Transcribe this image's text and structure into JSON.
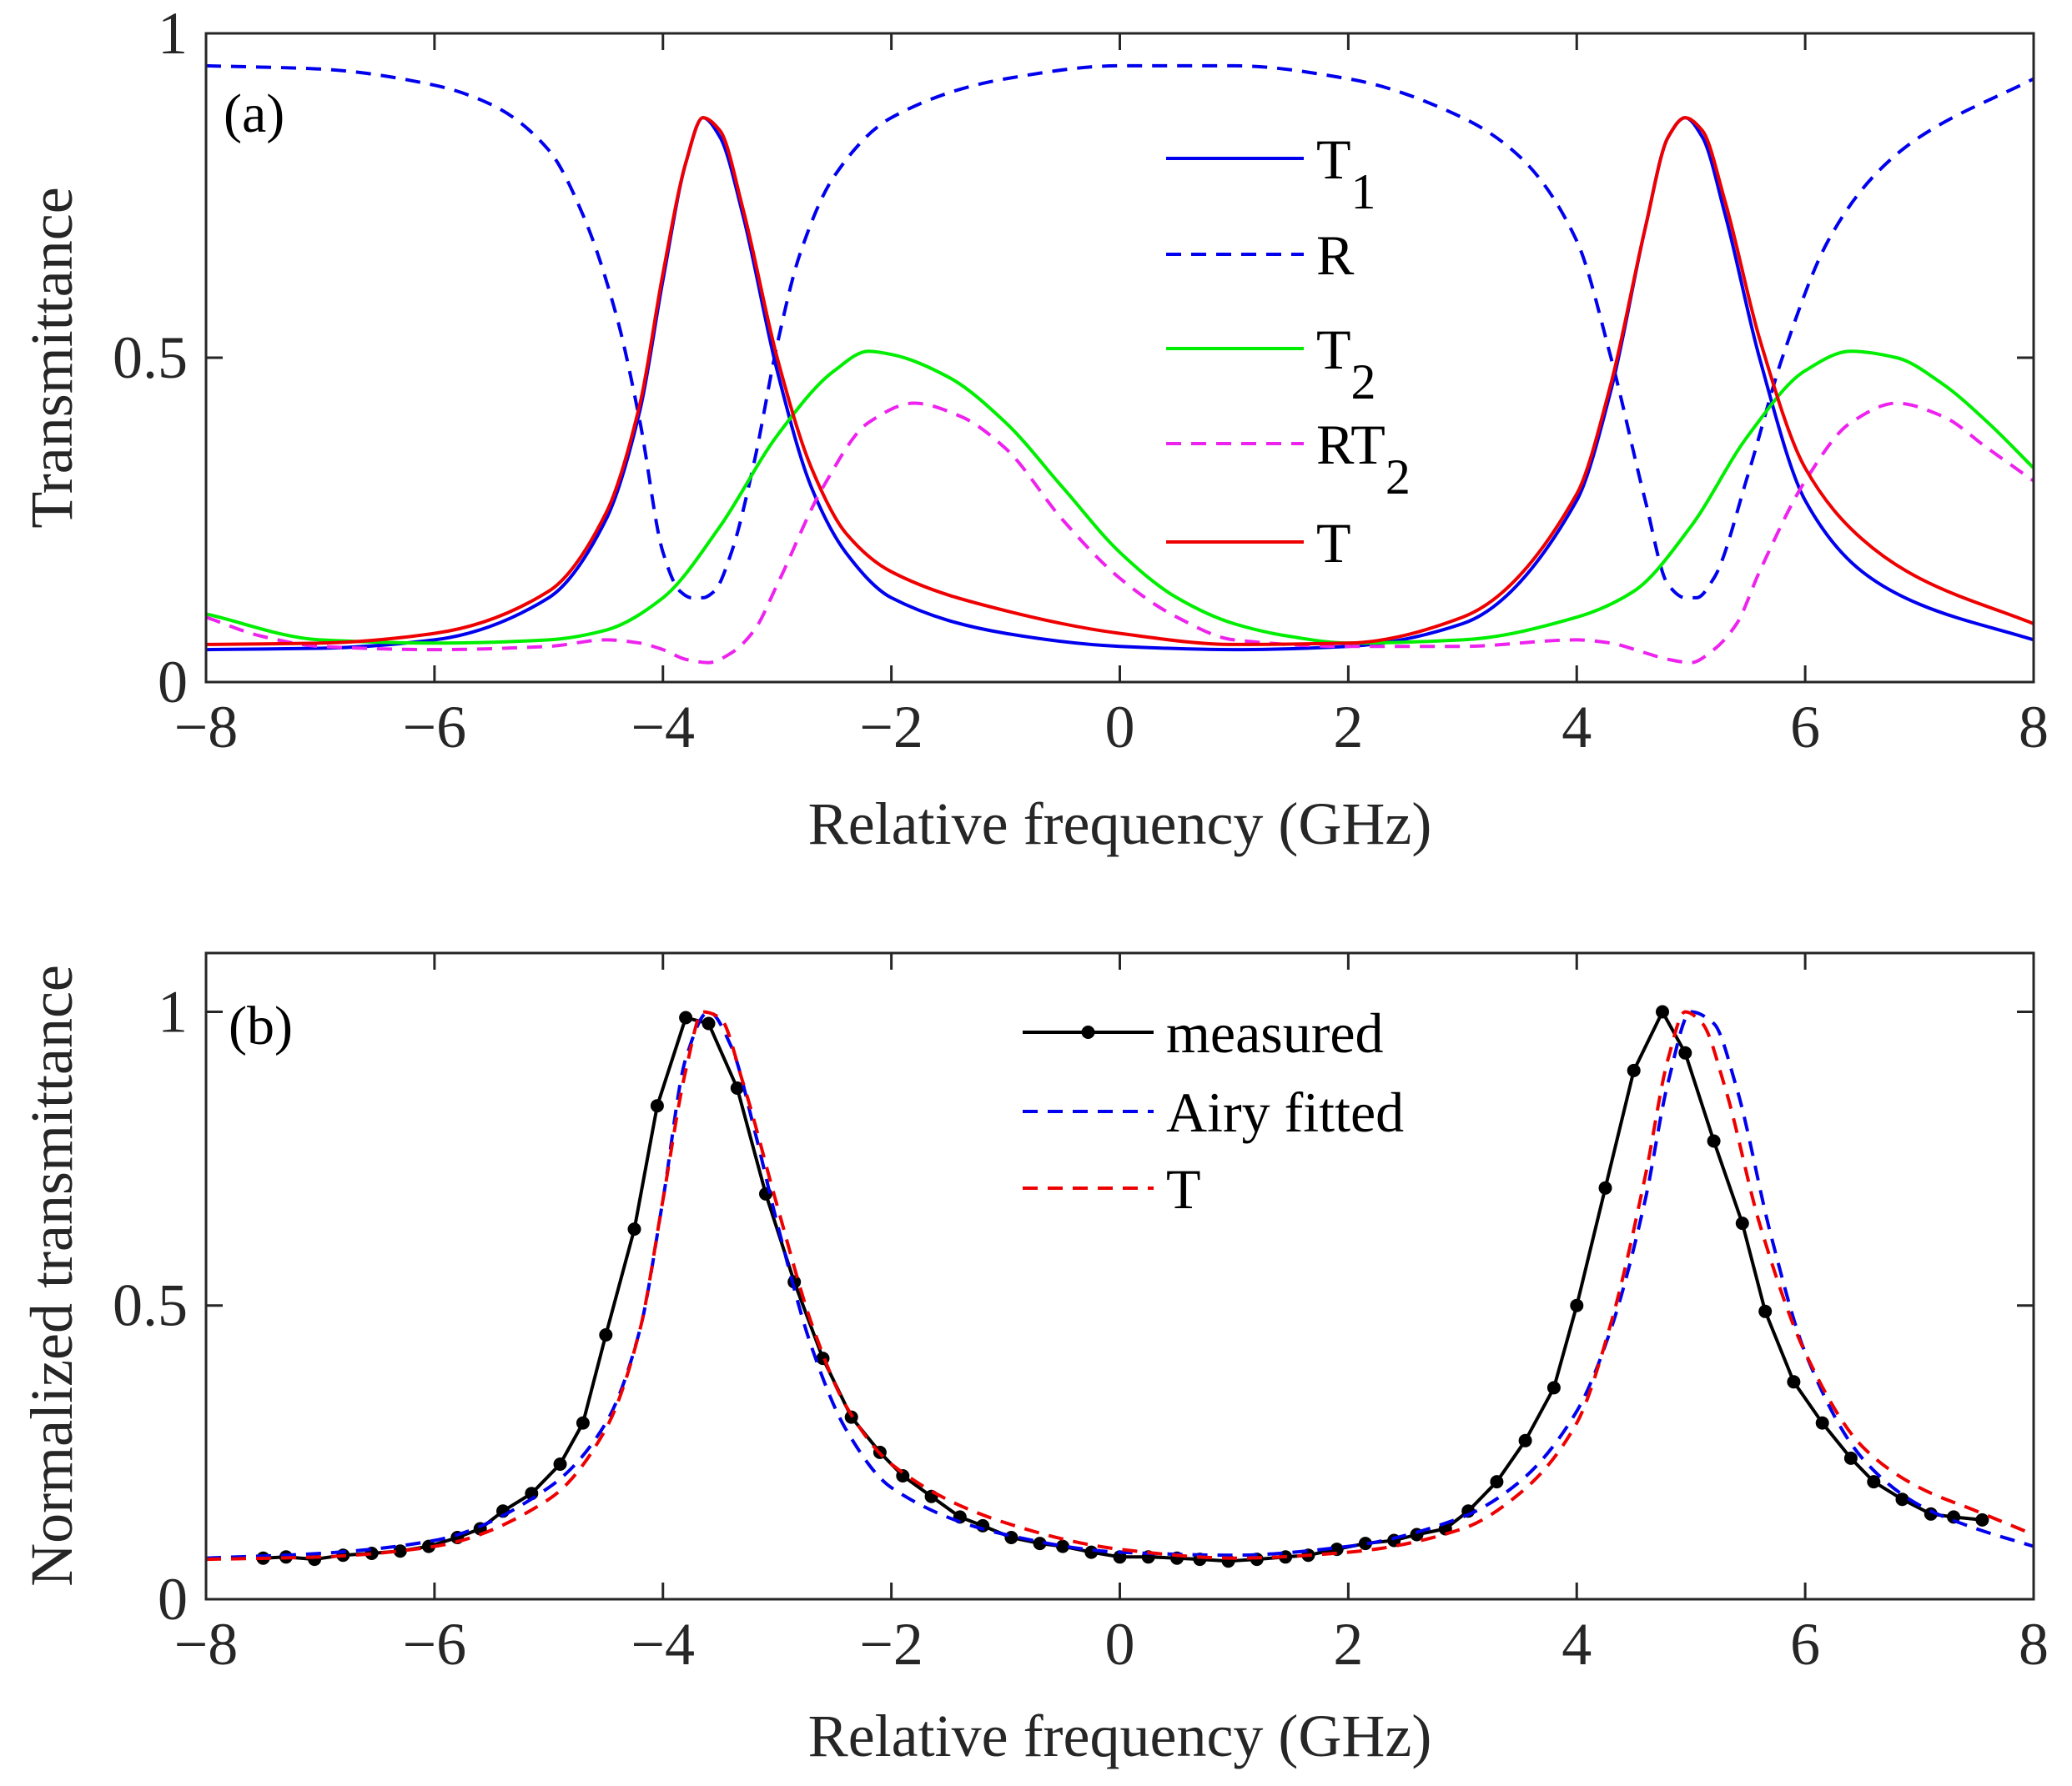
{
  "colors": {
    "T1": "#0000ee",
    "R": "#0000ee",
    "T2": "#00ee00",
    "RT2": "#ee22ee",
    "T": "#ee0000",
    "measured": "#000000",
    "airy": "#0000ee",
    "Tb": "#ee0000",
    "axis": "#262626"
  },
  "chart_data": [
    {
      "id": "a",
      "type": "line",
      "panel_label": "(a)",
      "xlabel": "Relative frequency (GHz)",
      "ylabel": "Transmittance",
      "xlim": [
        -8,
        8
      ],
      "ylim": [
        0,
        1
      ],
      "xticks": [
        "−8",
        "−6",
        "−4",
        "−2",
        "0",
        "2",
        "4",
        "6",
        "8"
      ],
      "yticks": [
        "0",
        "0.5",
        "1"
      ],
      "legend_position": "top-center",
      "series": [
        {
          "key": "T1",
          "name": "T",
          "sub": "1",
          "style": "solid",
          "x": [
            -8,
            -7,
            -6,
            -5,
            -4.5,
            -4.2,
            -4,
            -3.8,
            -3.65,
            -3.5,
            -3.3,
            -3,
            -2.7,
            -2.4,
            -2,
            -1,
            0,
            1,
            2,
            3,
            4,
            4.3,
            4.6,
            4.8,
            4.95,
            5.1,
            5.3,
            5.6,
            6,
            6.5,
            7,
            8
          ],
          "values": [
            0.05,
            0.052,
            0.065,
            0.13,
            0.25,
            0.42,
            0.62,
            0.8,
            0.87,
            0.84,
            0.72,
            0.48,
            0.3,
            0.2,
            0.13,
            0.075,
            0.055,
            0.05,
            0.055,
            0.09,
            0.28,
            0.45,
            0.7,
            0.84,
            0.87,
            0.84,
            0.72,
            0.5,
            0.28,
            0.17,
            0.12,
            0.065
          ]
        },
        {
          "key": "R",
          "name": "R",
          "sub": "",
          "style": "dashed",
          "x": [
            -8,
            -7,
            -6,
            -5.5,
            -5,
            -4.7,
            -4.4,
            -4.2,
            -4,
            -3.85,
            -3.75,
            -3.65,
            -3.55,
            -3.4,
            -3.2,
            -3,
            -2.8,
            -2.5,
            -2,
            -1,
            0,
            1,
            2,
            3,
            3.5,
            4,
            4.3,
            4.6,
            4.8,
            4.95,
            5.05,
            5.2,
            5.5,
            5.8,
            6.2,
            6.6,
            7,
            8
          ],
          "values": [
            0.95,
            0.945,
            0.92,
            0.89,
            0.82,
            0.72,
            0.56,
            0.4,
            0.2,
            0.14,
            0.13,
            0.13,
            0.14,
            0.2,
            0.34,
            0.52,
            0.66,
            0.78,
            0.87,
            0.93,
            0.95,
            0.95,
            0.93,
            0.87,
            0.81,
            0.68,
            0.5,
            0.28,
            0.15,
            0.13,
            0.13,
            0.16,
            0.32,
            0.5,
            0.68,
            0.78,
            0.84,
            0.93
          ]
        },
        {
          "key": "T2",
          "name": "T",
          "sub": "2",
          "style": "solid",
          "x": [
            -8,
            -7,
            -6,
            -5,
            -4.5,
            -4,
            -3.5,
            -3,
            -2.5,
            -2.2,
            -2,
            -1.5,
            -1,
            -0.5,
            0,
            0.5,
            1,
            1.5,
            2,
            3,
            4,
            4.5,
            5,
            5.5,
            6,
            6.4,
            6.8,
            7.2,
            7.6,
            8
          ],
          "values": [
            0.105,
            0.065,
            0.06,
            0.065,
            0.08,
            0.13,
            0.24,
            0.38,
            0.48,
            0.51,
            0.505,
            0.47,
            0.4,
            0.3,
            0.2,
            0.13,
            0.09,
            0.07,
            0.06,
            0.065,
            0.1,
            0.14,
            0.24,
            0.38,
            0.48,
            0.51,
            0.5,
            0.46,
            0.4,
            0.33
          ]
        },
        {
          "key": "RT2",
          "name": "RT",
          "sub": "2",
          "style": "dashed",
          "x": [
            -8,
            -7.5,
            -7,
            -6,
            -5,
            -4.5,
            -4.2,
            -4,
            -3.8,
            -3.6,
            -3.4,
            -3.2,
            -3,
            -2.6,
            -2.2,
            -1.8,
            -1.4,
            -1,
            -0.5,
            0,
            0.5,
            1,
            2,
            3,
            4,
            4.3,
            4.6,
            4.8,
            5,
            5.2,
            5.4,
            5.6,
            6,
            6.4,
            6.8,
            7.2,
            7.6,
            8
          ],
          "values": [
            0.1,
            0.07,
            0.055,
            0.05,
            0.055,
            0.065,
            0.06,
            0.05,
            0.035,
            0.03,
            0.045,
            0.08,
            0.15,
            0.3,
            0.4,
            0.43,
            0.41,
            0.36,
            0.25,
            0.16,
            0.1,
            0.065,
            0.055,
            0.055,
            0.065,
            0.06,
            0.045,
            0.035,
            0.03,
            0.05,
            0.09,
            0.17,
            0.31,
            0.4,
            0.43,
            0.41,
            0.36,
            0.31
          ]
        },
        {
          "key": "T",
          "name": "T",
          "sub": "",
          "style": "solid",
          "x": [
            -8,
            -7,
            -6,
            -5,
            -4.5,
            -4.2,
            -4,
            -3.8,
            -3.65,
            -3.5,
            -3.3,
            -3,
            -2.7,
            -2.4,
            -2,
            -1,
            0,
            1,
            2,
            3,
            4,
            4.3,
            4.6,
            4.8,
            4.95,
            5.1,
            5.3,
            5.6,
            6,
            6.5,
            7,
            8
          ],
          "values": [
            0.058,
            0.06,
            0.075,
            0.14,
            0.26,
            0.43,
            0.63,
            0.8,
            0.87,
            0.85,
            0.73,
            0.5,
            0.33,
            0.23,
            0.17,
            0.11,
            0.075,
            0.058,
            0.06,
            0.1,
            0.29,
            0.46,
            0.7,
            0.84,
            0.87,
            0.85,
            0.74,
            0.53,
            0.33,
            0.22,
            0.16,
            0.09
          ]
        }
      ]
    },
    {
      "id": "b",
      "type": "line",
      "panel_label": "(b)",
      "xlabel": "Relative frequency (GHz)",
      "ylabel": "Normalized transmittance",
      "xlim": [
        -8,
        8
      ],
      "ylim": [
        0,
        1.1
      ],
      "xticks": [
        "−8",
        "−6",
        "−4",
        "−2",
        "0",
        "2",
        "4",
        "6",
        "8"
      ],
      "yticks": [
        "0",
        "0.5",
        "1"
      ],
      "legend_position": "top-center",
      "series": [
        {
          "key": "measured",
          "name": "measured",
          "sub": "",
          "style": "solid-markers",
          "x": [
            -7.5,
            -7.3,
            -7.05,
            -6.8,
            -6.55,
            -6.3,
            -6.05,
            -5.8,
            -5.6,
            -5.4,
            -5.15,
            -4.9,
            -4.7,
            -4.5,
            -4.25,
            -4.05,
            -3.8,
            -3.6,
            -3.35,
            -3.1,
            -2.85,
            -2.6,
            -2.35,
            -2.1,
            -1.9,
            -1.65,
            -1.4,
            -1.2,
            -0.95,
            -0.7,
            -0.5,
            -0.25,
            0,
            0.25,
            0.5,
            0.7,
            0.95,
            1.2,
            1.45,
            1.65,
            1.9,
            2.15,
            2.4,
            2.6,
            2.85,
            3.05,
            3.3,
            3.55,
            3.8,
            4,
            4.25,
            4.5,
            4.75,
            4.95,
            5.2,
            5.45,
            5.65,
            5.9,
            6.15,
            6.4,
            6.6,
            6.85,
            7.1,
            7.3,
            7.55
          ],
          "values": [
            0.07,
            0.072,
            0.068,
            0.075,
            0.078,
            0.082,
            0.09,
            0.105,
            0.12,
            0.15,
            0.18,
            0.23,
            0.3,
            0.45,
            0.63,
            0.84,
            0.99,
            0.98,
            0.87,
            0.69,
            0.54,
            0.41,
            0.31,
            0.25,
            0.21,
            0.175,
            0.14,
            0.125,
            0.105,
            0.095,
            0.09,
            0.08,
            0.072,
            0.072,
            0.07,
            0.068,
            0.065,
            0.068,
            0.072,
            0.075,
            0.085,
            0.095,
            0.1,
            0.11,
            0.12,
            0.15,
            0.2,
            0.27,
            0.36,
            0.5,
            0.7,
            0.9,
            1.0,
            0.93,
            0.78,
            0.64,
            0.49,
            0.37,
            0.3,
            0.24,
            0.2,
            0.17,
            0.145,
            0.14,
            0.135
          ]
        },
        {
          "key": "airy",
          "name": "Airy fitted",
          "sub": "",
          "style": "dashed",
          "x": [
            -8,
            -7,
            -6,
            -5,
            -4.5,
            -4.2,
            -4,
            -3.8,
            -3.6,
            -3.4,
            -3.2,
            -3,
            -2.7,
            -2.4,
            -2,
            -1,
            0,
            1,
            2,
            3,
            3.5,
            4,
            4.3,
            4.6,
            4.8,
            5,
            5.2,
            5.4,
            5.7,
            6,
            6.5,
            7,
            7.5,
            8
          ],
          "values": [
            0.07,
            0.078,
            0.1,
            0.19,
            0.3,
            0.46,
            0.68,
            0.92,
            1.0,
            0.94,
            0.8,
            0.64,
            0.43,
            0.29,
            0.19,
            0.11,
            0.08,
            0.075,
            0.09,
            0.14,
            0.2,
            0.32,
            0.46,
            0.68,
            0.88,
            1.0,
            0.98,
            0.87,
            0.62,
            0.42,
            0.24,
            0.16,
            0.12,
            0.09
          ]
        },
        {
          "key": "Tb",
          "name": "T",
          "sub": "",
          "style": "dashed",
          "x": [
            -8,
            -7,
            -6,
            -5,
            -4.5,
            -4.2,
            -4,
            -3.8,
            -3.65,
            -3.5,
            -3.3,
            -3,
            -2.7,
            -2.4,
            -2,
            -1,
            0,
            1,
            2,
            3,
            3.5,
            4,
            4.3,
            4.6,
            4.8,
            4.95,
            5.1,
            5.3,
            5.6,
            6,
            6.5,
            7,
            7.5,
            8
          ],
          "values": [
            0.068,
            0.072,
            0.09,
            0.17,
            0.29,
            0.46,
            0.68,
            0.9,
            1.0,
            0.99,
            0.88,
            0.67,
            0.47,
            0.33,
            0.23,
            0.13,
            0.085,
            0.07,
            0.08,
            0.12,
            0.18,
            0.3,
            0.47,
            0.72,
            0.92,
            1.0,
            0.98,
            0.87,
            0.64,
            0.42,
            0.26,
            0.19,
            0.15,
            0.11
          ]
        }
      ]
    }
  ]
}
